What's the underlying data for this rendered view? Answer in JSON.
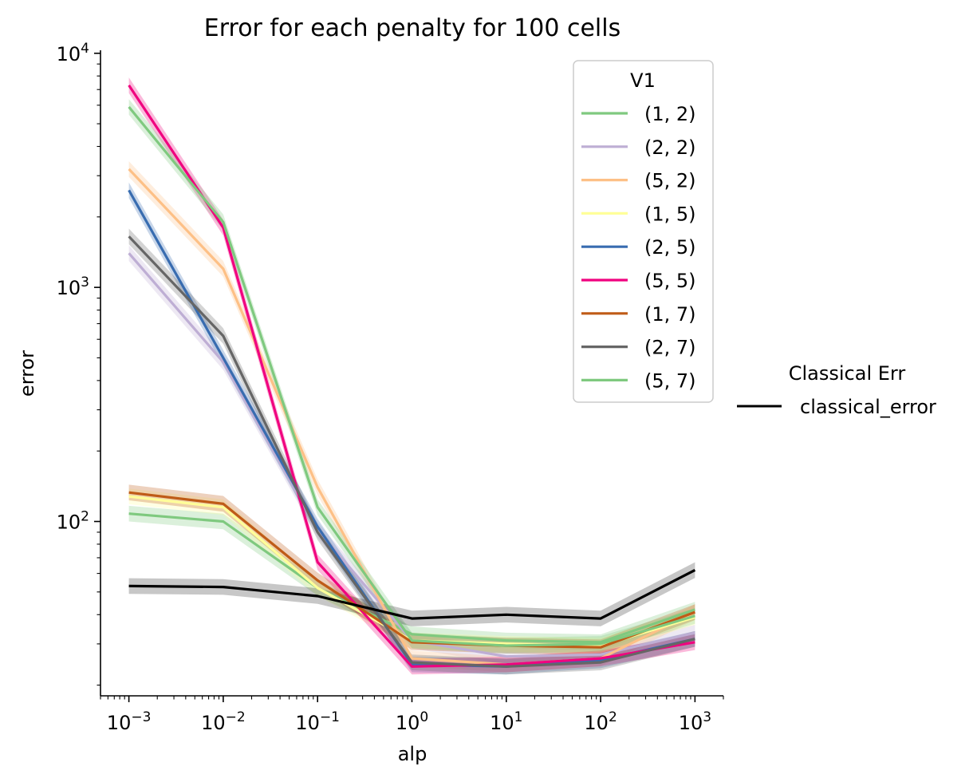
{
  "chart_data": {
    "type": "line",
    "title": "Error for each penalty for 100 cells",
    "xlabel": "alp",
    "ylabel": "error",
    "xscale": "log",
    "yscale": "log",
    "xlim": [
      0.0005,
      2000
    ],
    "ylim": [
      18,
      10300
    ],
    "x": [
      0.001,
      0.01,
      0.1,
      1,
      10,
      100,
      1000
    ],
    "x_ticks": [
      {
        "value": 0.001,
        "base": "10",
        "exp": "−3"
      },
      {
        "value": 0.01,
        "base": "10",
        "exp": "−2"
      },
      {
        "value": 0.1,
        "base": "10",
        "exp": "−1"
      },
      {
        "value": 1,
        "base": "10",
        "exp": "0"
      },
      {
        "value": 10,
        "base": "10",
        "exp": "1"
      },
      {
        "value": 100,
        "base": "10",
        "exp": "2"
      },
      {
        "value": 1000,
        "base": "10",
        "exp": "3"
      }
    ],
    "y_ticks": [
      {
        "value": 100,
        "base": "10",
        "exp": "2"
      },
      {
        "value": 1000,
        "base": "10",
        "exp": "3"
      },
      {
        "value": 10000,
        "base": "10",
        "exp": "4"
      }
    ],
    "grid": false,
    "legend": {
      "title": "V1",
      "placement": "top-right"
    },
    "series": [
      {
        "name": "(1, 2)",
        "color": "#7fc97f",
        "values": [
          108,
          100,
          52,
          33,
          31,
          30.5,
          42
        ]
      },
      {
        "name": "(2, 2)",
        "color": "#beaed4",
        "values": [
          1400,
          480,
          92,
          31,
          26.5,
          27,
          33.5
        ]
      },
      {
        "name": "(5, 2)",
        "color": "#fdc086",
        "values": [
          3200,
          1200,
          140,
          26,
          24.5,
          26,
          41
        ]
      },
      {
        "name": "(1, 5)",
        "color": "#ffff99",
        "values": [
          128,
          115,
          52,
          31,
          30,
          29.5,
          39
        ]
      },
      {
        "name": "(2, 5)",
        "color": "#386cb0",
        "values": [
          2600,
          500,
          95,
          24.5,
          24,
          25.5,
          31.5
        ]
      },
      {
        "name": "(5, 5)",
        "color": "#f0027f",
        "values": [
          7300,
          1800,
          67,
          24,
          24.5,
          26,
          30.5
        ]
      },
      {
        "name": "(1, 7)",
        "color": "#bf5b17",
        "values": [
          133,
          119,
          56,
          30.5,
          29.5,
          29,
          41
        ]
      },
      {
        "name": "(2, 7)",
        "color": "#666666",
        "values": [
          1650,
          620,
          90,
          25,
          24,
          25,
          31.5
        ]
      },
      {
        "name": "(5, 7)",
        "color": "#7fc97f",
        "values": [
          5900,
          1900,
          115,
          31,
          29.5,
          30,
          39.5
        ]
      }
    ],
    "classical": {
      "legend_title": "Classical Err",
      "name": "classical_error",
      "color": "#000000",
      "values": [
        53,
        52.5,
        48,
        38.5,
        40,
        38.5,
        62
      ]
    }
  }
}
